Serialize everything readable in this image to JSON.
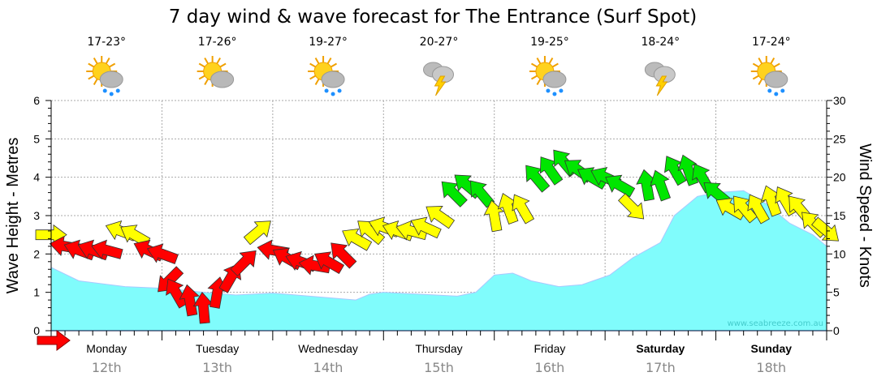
{
  "chart_data": {
    "type": "area+wind-arrows",
    "title": "7 day wind & wave forecast for The Entrance (Surf Spot)",
    "ylabel_left": "Wave Height - Metres",
    "ylabel_right": "Wind Speed - Knots",
    "ylim_left": [
      0,
      6
    ],
    "ylim_right": [
      0,
      30
    ],
    "yticks_left": [
      "0",
      "1",
      "2",
      "3",
      "4",
      "5",
      "6"
    ],
    "yticks_right": [
      "0",
      "5",
      "10",
      "15",
      "20",
      "25",
      "30"
    ],
    "grid": true,
    "watermark": "www.seabreeze.com.au",
    "days": [
      {
        "name": "Monday",
        "date": "12th",
        "temp": "17-23°",
        "icon": "sun-cloud-rain",
        "bold": false
      },
      {
        "name": "Tuesday",
        "date": "13th",
        "temp": "17-26°",
        "icon": "sun-cloud",
        "bold": false
      },
      {
        "name": "Wednesday",
        "date": "14th",
        "temp": "19-27°",
        "icon": "sun-cloud-rain",
        "bold": false
      },
      {
        "name": "Thursday",
        "date": "15th",
        "temp": "20-27°",
        "icon": "thunderstorm",
        "bold": false
      },
      {
        "name": "Friday",
        "date": "16th",
        "temp": "19-25°",
        "icon": "sun-cloud-rain",
        "bold": false
      },
      {
        "name": "Saturday",
        "date": "17th",
        "temp": "18-24°",
        "icon": "thunderstorm",
        "bold": true
      },
      {
        "name": "Sunday",
        "date": "18th",
        "temp": "17-24°",
        "icon": "sun-cloud-rain",
        "bold": true
      }
    ],
    "wave_series": {
      "name": "Wave height (m)",
      "hours": [
        0,
        6,
        16,
        25,
        33,
        40,
        48,
        56,
        66,
        69,
        72,
        80,
        88,
        92,
        96,
        100,
        104,
        110,
        115,
        121,
        126,
        132,
        135,
        140,
        144,
        150,
        155,
        160,
        165,
        168
      ],
      "values": [
        1.65,
        1.3,
        1.15,
        1.1,
        1.0,
        0.93,
        0.98,
        0.9,
        0.8,
        0.95,
        1.0,
        0.95,
        0.9,
        1.0,
        1.45,
        1.5,
        1.3,
        1.15,
        1.2,
        1.45,
        1.9,
        2.3,
        3.0,
        3.5,
        3.6,
        3.65,
        3.3,
        2.8,
        2.5,
        2.2
      ]
    },
    "wind_series": {
      "name": "Wind speed (knots) and direction",
      "hours": [
        0,
        3,
        6,
        9,
        12,
        15,
        18,
        21,
        24,
        25.5,
        27,
        30,
        33,
        36,
        39,
        42,
        45,
        48,
        51,
        54,
        57,
        60,
        63,
        66,
        69,
        72,
        75,
        78,
        81,
        84,
        87,
        90,
        93,
        96,
        99,
        102,
        105,
        108,
        111,
        114,
        117,
        120,
        123,
        126,
        129,
        132,
        135,
        138,
        141,
        144,
        147,
        150,
        153,
        156,
        159,
        162,
        165,
        168
      ],
      "knots": [
        12.5,
        11,
        10.5,
        10.5,
        10.5,
        13,
        12.5,
        10.5,
        10,
        6.5,
        5,
        4,
        3,
        5,
        7,
        9,
        13,
        10.5,
        9.5,
        9,
        8.5,
        9,
        10,
        12,
        13,
        13.5,
        13,
        13,
        13.5,
        15,
        18,
        19,
        18,
        15,
        16,
        16,
        20,
        21,
        22,
        21,
        20,
        20,
        19,
        16,
        19,
        19,
        21,
        21,
        20,
        18,
        16,
        16,
        16,
        17,
        17,
        16,
        14,
        13
      ],
      "arrow_angle_deg": [
        0,
        170,
        160,
        160,
        165,
        160,
        150,
        155,
        160,
        225,
        120,
        100,
        95,
        80,
        60,
        45,
        40,
        170,
        150,
        160,
        170,
        150,
        135,
        150,
        140,
        160,
        160,
        165,
        155,
        145,
        135,
        140,
        130,
        100,
        110,
        120,
        130,
        125,
        130,
        145,
        150,
        155,
        150,
        -45,
        100,
        110,
        120,
        110,
        120,
        140,
        150,
        130,
        120,
        110,
        120,
        130,
        135,
        -40
      ]
    },
    "wind_colors": {
      "light": "#ff0000",
      "moderate": "#ffff00",
      "strong": "#00e600"
    },
    "wave_fill": "#80fcfc"
  }
}
